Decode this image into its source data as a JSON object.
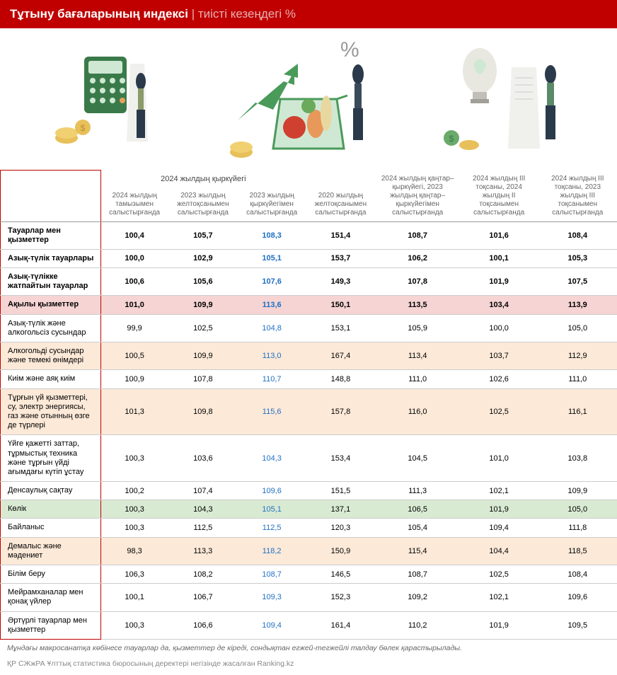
{
  "header": {
    "title": "Тұтыну бағаларының индексі",
    "subtitle": "тиісті кезеңдегі %"
  },
  "table": {
    "section_header": "2024 жылдың қыркүйегі",
    "columns": [
      "2024 жылдың тамызымен салыстырғанда",
      "2023 жылдың желтоқсанымен салыстырғанда",
      "2023 жылдың қыркүйегімен салыстырғанда",
      "2020 жылдың желтоқсанымен салыстырғанда",
      "2024 жылдың қаңтар–қыркүйегі, 2023 жылдың қаңтар–қыркүйегімен салыстырғанда",
      "2024 жылдың III тоқсаны, 2024 жылдың II тоқсанымен салыстырғанда",
      "2024 жылдың III тоқсаны, 2023 жылдың III тоқсанымен салыстырғанда"
    ],
    "blue_col_index": 2,
    "rows": [
      {
        "label": "Тауарлар мен қызметтер",
        "bold": true,
        "style": "",
        "v": [
          "100,4",
          "105,7",
          "108,3",
          "151,4",
          "108,7",
          "101,6",
          "108,4"
        ]
      },
      {
        "label": "Азық-түлік тауарлары",
        "bold": true,
        "style": "",
        "v": [
          "100,0",
          "102,9",
          "105,1",
          "153,7",
          "106,2",
          "100,1",
          "105,3"
        ]
      },
      {
        "label": "Азық-түлікке жатпайтын тауарлар",
        "bold": true,
        "style": "",
        "v": [
          "100,6",
          "105,6",
          "107,6",
          "149,3",
          "107,8",
          "101,9",
          "107,5"
        ]
      },
      {
        "label": "Ақылы қызметтер",
        "bold": true,
        "style": "pink",
        "v": [
          "101,0",
          "109,9",
          "113,6",
          "150,1",
          "113,5",
          "103,4",
          "113,9"
        ]
      },
      {
        "label": "Азық-түлік және алкогольсіз сусындар",
        "bold": false,
        "style": "",
        "v": [
          "99,9",
          "102,5",
          "104,8",
          "153,1",
          "105,9",
          "100,0",
          "105,0"
        ]
      },
      {
        "label": "Алкогольді сусындар және темекі өнімдері",
        "bold": false,
        "style": "peach",
        "v": [
          "100,5",
          "109,9",
          "113,0",
          "167,4",
          "113,4",
          "103,7",
          "112,9"
        ]
      },
      {
        "label": "Киім және аяқ киім",
        "bold": false,
        "style": "",
        "v": [
          "100,9",
          "107,8",
          "110,7",
          "148,8",
          "111,0",
          "102,6",
          "111,0"
        ]
      },
      {
        "label": "Тұрғын үй қызметтері, су, электр энергиясы, газ және отынның өзге де түрлері",
        "bold": false,
        "style": "peach",
        "v": [
          "101,3",
          "109,8",
          "115,6",
          "157,8",
          "116,0",
          "102,5",
          "116,1"
        ]
      },
      {
        "label": "Үйге қажетті заттар, тұрмыстық техника және тұрғын үйді ағымдағы күтіп ұстау",
        "bold": false,
        "style": "",
        "v": [
          "100,3",
          "103,6",
          "104,3",
          "153,4",
          "104,5",
          "101,0",
          "103,8"
        ]
      },
      {
        "label": "Денсаулық сақтау",
        "bold": false,
        "style": "",
        "v": [
          "100,2",
          "107,4",
          "109,6",
          "151,5",
          "111,3",
          "102,1",
          "109,9"
        ]
      },
      {
        "label": "Көлік",
        "bold": false,
        "style": "green",
        "v": [
          "100,3",
          "104,3",
          "105,1",
          "137,1",
          "106,5",
          "101,9",
          "105,0"
        ]
      },
      {
        "label": "Байланыс",
        "bold": false,
        "style": "",
        "v": [
          "100,3",
          "112,5",
          "112,5",
          "120,3",
          "105,4",
          "109,4",
          "111,8"
        ]
      },
      {
        "label": "Демалыс және мәдениет",
        "bold": false,
        "style": "peach",
        "v": [
          "98,3",
          "113,3",
          "118,2",
          "150,9",
          "115,4",
          "104,4",
          "118,5"
        ]
      },
      {
        "label": "Білім беру",
        "bold": false,
        "style": "",
        "v": [
          "106,3",
          "108,2",
          "108,7",
          "146,5",
          "108,7",
          "102,5",
          "108,4"
        ]
      },
      {
        "label": "Мейрамханалар мен қонақ үйлер",
        "bold": false,
        "style": "",
        "v": [
          "100,1",
          "106,7",
          "109,3",
          "152,3",
          "109,2",
          "102,1",
          "109,6"
        ]
      },
      {
        "label": "Әртүрлі тауарлар мен қызметтер",
        "bold": false,
        "style": "",
        "v": [
          "100,3",
          "106,6",
          "109,4",
          "161,4",
          "110,2",
          "101,9",
          "109,5"
        ]
      }
    ]
  },
  "note": "Мұндағы макросанатқа көбінесе тауарлар да, қызметтер де кіреді, сондықтан егжей-тегжейлі талдау бөлек қарастырылады.",
  "footer": "ҚР СЖжРА Ұлттық статистика бюросының деректері негізінде жасалған Ranking.kz",
  "colors": {
    "header_bg": "#c00000",
    "pink": "#f6d4d4",
    "peach": "#fce9d8",
    "green": "#d9ead3",
    "blue_text": "#1f6fc4"
  }
}
